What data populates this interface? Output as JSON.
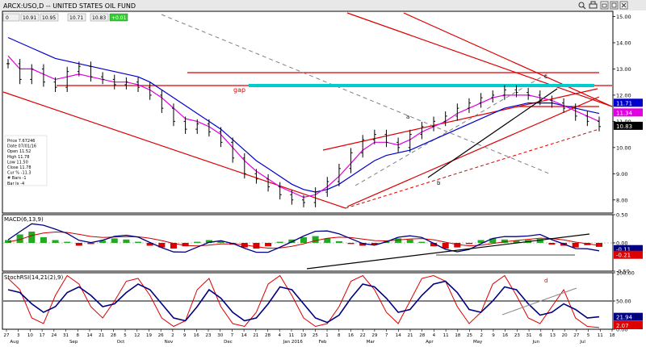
{
  "window": {
    "title": "ARCX:USO,D -- UNITED STATES OIL FUND",
    "controls": [
      "search-icon",
      "print-icon",
      "restore-icon",
      "maximize-icon",
      "close-icon"
    ]
  },
  "colors": {
    "price_bar": "#000000",
    "ema_fast": "#e000e0",
    "ema_slow": "#0000cc",
    "trendline": "#dd0000",
    "dashed_gray": "#808080",
    "cyan_resistance": "#00cccc",
    "macd_line": "#000080",
    "macd_signal": "#cc0000",
    "hist_pos": "#22aa22",
    "hist_neg": "#dd0000",
    "stoch_k": "#dd0000",
    "stoch_d": "#000080",
    "axis_bg": "#ffffff",
    "tag_blue": "#0000cc",
    "tag_magenta": "#e000e0",
    "tag_black": "#000000",
    "tag_red": "#dd0000",
    "tag_navy": "#000080"
  },
  "price_header": {
    "open_box": "0",
    "vals": [
      "10.91",
      "10.95",
      "10.71",
      "10.83"
    ],
    "change": "+0.01"
  },
  "info_box": {
    "lines": [
      "Price  7.67246",
      "Date   07/01/16",
      "Open   11.52",
      "High   11.78",
      "Low    11.50",
      "Close  11.78",
      "Cur %  -11.3",
      "# Bars -1",
      "Bar Ix -4"
    ]
  },
  "annotations": {
    "gap": "gap",
    "a": "a",
    "b": "b",
    "c": "c",
    "d": "d"
  },
  "price_axis": {
    "ticks": [
      "15.00",
      "14.00",
      "13.00",
      "12.00",
      "11.00",
      "10.00",
      "9.00",
      "8.00"
    ],
    "tags": [
      "11.71",
      "11.34",
      "10.83"
    ]
  },
  "macd_panel": {
    "label": "MACD(6,13,9)",
    "ticks": [
      "0.50",
      "0.00",
      "-0.50"
    ],
    "tags": [
      "-0.11",
      "-0.21"
    ]
  },
  "stoch_panel": {
    "label": "StochRSI(14,21(2),9)",
    "ticks": [
      "100.00",
      "50.00",
      "0.00"
    ],
    "tags": [
      "21.94",
      "2.07"
    ]
  },
  "time_axis": {
    "days": [
      "27",
      "3",
      "10",
      "17",
      "24",
      "31",
      "8",
      "14",
      "21",
      "28",
      "5",
      "12",
      "19",
      "26",
      "2",
      "9",
      "16",
      "23",
      "30",
      "7",
      "14",
      "21",
      "28",
      "4",
      "11",
      "19",
      "25",
      "1",
      "8",
      "16",
      "22",
      "29",
      "7",
      "14",
      "21",
      "28",
      "4",
      "11",
      "18",
      "25",
      "2",
      "9",
      "16",
      "23",
      "31",
      "6",
      "13",
      "20",
      "27",
      "5",
      "11",
      "18"
    ],
    "months": [
      "Aug",
      "Sep",
      "Oct",
      "Nov",
      "Dec",
      "Jan 2016",
      "Feb",
      "Mar",
      "Apr",
      "May",
      "Jun",
      "Jul"
    ]
  },
  "chart_data": [
    {
      "type": "line",
      "title": "ARCX:USO,D -- UNITED STATES OIL FUND",
      "ylim": [
        7.5,
        15.2
      ],
      "grid": false,
      "series": [
        {
          "name": "price",
          "values": [
            13.2,
            12.6,
            13.0,
            12.5,
            12.3,
            12.9,
            13.1,
            12.7,
            12.6,
            12.4,
            12.5,
            12.3,
            12.0,
            11.5,
            11.0,
            10.7,
            10.9,
            10.6,
            10.2,
            9.6,
            9.0,
            8.8,
            8.5,
            8.2,
            8.0,
            7.9,
            8.3,
            8.7,
            9.2,
            9.8,
            10.3,
            10.5,
            10.2,
            10.0,
            10.5,
            10.8,
            11.0,
            11.2,
            11.5,
            11.7,
            11.9,
            12.0,
            12.2,
            12.1,
            12.0,
            11.8,
            11.7,
            11.5,
            11.2,
            11.0,
            10.8
          ]
        },
        {
          "name": "ema_fast",
          "values": [
            13.5,
            13.0,
            13.0,
            12.8,
            12.6,
            12.7,
            12.8,
            12.7,
            12.6,
            12.5,
            12.5,
            12.4,
            12.2,
            11.9,
            11.5,
            11.1,
            11.0,
            10.8,
            10.5,
            10.0,
            9.5,
            9.1,
            8.8,
            8.5,
            8.3,
            8.1,
            8.2,
            8.5,
            8.9,
            9.4,
            9.9,
            10.2,
            10.2,
            10.1,
            10.3,
            10.6,
            10.8,
            11.0,
            11.3,
            11.5,
            11.7,
            11.9,
            12.0,
            12.0,
            12.0,
            11.9,
            11.8,
            11.6,
            11.4,
            11.2,
            11.0
          ]
        },
        {
          "name": "ema_slow",
          "values": [
            14.2,
            14.0,
            13.8,
            13.6,
            13.4,
            13.3,
            13.2,
            13.1,
            13.0,
            12.9,
            12.8,
            12.7,
            12.5,
            12.2,
            11.9,
            11.6,
            11.3,
            11.0,
            10.7,
            10.3,
            9.9,
            9.5,
            9.2,
            8.9,
            8.6,
            8.4,
            8.3,
            8.4,
            8.6,
            8.9,
            9.2,
            9.5,
            9.7,
            9.8,
            9.9,
            10.1,
            10.3,
            10.5,
            10.7,
            10.9,
            11.1,
            11.3,
            11.5,
            11.6,
            11.7,
            11.7,
            11.7,
            11.6,
            11.5,
            11.4,
            11.3
          ]
        }
      ]
    },
    {
      "type": "bar",
      "title": "MACD(6,13,9)",
      "ylim": [
        -0.5,
        0.5
      ],
      "series": [
        {
          "name": "histogram",
          "values": [
            0.05,
            0.15,
            0.2,
            0.1,
            0.05,
            0.02,
            -0.05,
            -0.02,
            0.04,
            0.08,
            0.06,
            0.02,
            -0.05,
            -0.08,
            -0.1,
            -0.06,
            0.02,
            0.05,
            0.03,
            -0.03,
            -0.08,
            -0.1,
            -0.06,
            0.02,
            0.06,
            0.1,
            0.12,
            0.08,
            0.03,
            -0.02,
            -0.05,
            -0.03,
            0.04,
            0.08,
            0.06,
            0.02,
            -0.06,
            -0.1,
            -0.08,
            -0.02,
            0.05,
            0.08,
            0.06,
            0.04,
            0.05,
            0.07,
            -0.03,
            -0.05,
            -0.08,
            -0.04,
            -0.07
          ]
        }
      ]
    },
    {
      "type": "line",
      "title": "StochRSI(14,21(2),9)",
      "ylim": [
        0,
        100
      ],
      "series": [
        {
          "name": "k",
          "values": [
            90,
            70,
            20,
            10,
            60,
            95,
            80,
            40,
            20,
            50,
            85,
            90,
            60,
            20,
            5,
            15,
            70,
            90,
            40,
            10,
            5,
            30,
            80,
            95,
            60,
            20,
            5,
            10,
            40,
            85,
            95,
            70,
            30,
            10,
            50,
            90,
            95,
            85,
            40,
            10,
            30,
            80,
            95,
            60,
            20,
            10,
            40,
            70,
            20,
            5,
            3
          ]
        },
        {
          "name": "d",
          "values": [
            70,
            65,
            45,
            30,
            40,
            65,
            75,
            60,
            40,
            45,
            65,
            80,
            70,
            45,
            20,
            15,
            40,
            70,
            55,
            30,
            15,
            20,
            45,
            75,
            70,
            45,
            20,
            12,
            25,
            55,
            80,
            75,
            55,
            30,
            35,
            60,
            80,
            85,
            65,
            35,
            30,
            50,
            75,
            70,
            45,
            25,
            30,
            45,
            35,
            20,
            22
          ]
        }
      ]
    }
  ]
}
